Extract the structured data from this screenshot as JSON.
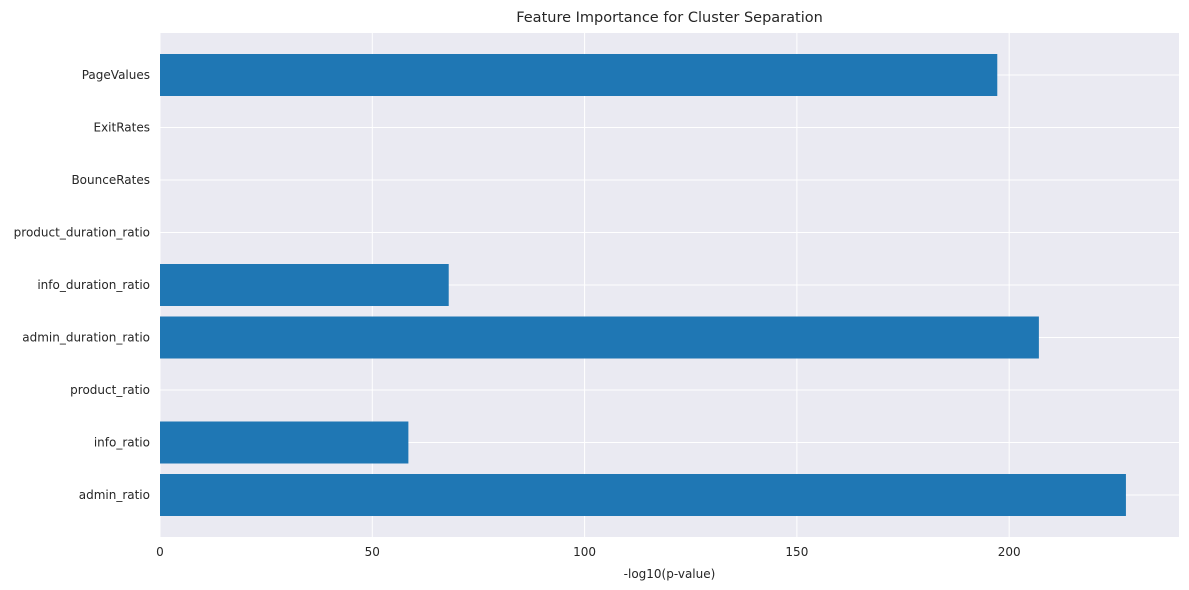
{
  "chart_data": {
    "type": "bar",
    "orientation": "horizontal",
    "title": "Feature Importance for Cluster Separation",
    "xlabel": "-log10(p-value)",
    "ylabel": "",
    "categories": [
      "admin_ratio",
      "info_ratio",
      "product_ratio",
      "admin_duration_ratio",
      "info_duration_ratio",
      "product_duration_ratio",
      "BounceRates",
      "ExitRates",
      "PageValues"
    ],
    "values": [
      227.5,
      58.5,
      0,
      207.0,
      68.0,
      0,
      0,
      0,
      197.2
    ],
    "xlim": [
      0,
      240
    ],
    "xticks": [
      0,
      50,
      100,
      150,
      200
    ],
    "xtick_labels": [
      "0",
      "50",
      "100",
      "150",
      "200"
    ],
    "grid": true,
    "legend": "none",
    "colors": {
      "bar": "#1f77b4",
      "plot_bg": "#eaeaf2",
      "grid": "#ffffff",
      "text": "#262626"
    }
  }
}
